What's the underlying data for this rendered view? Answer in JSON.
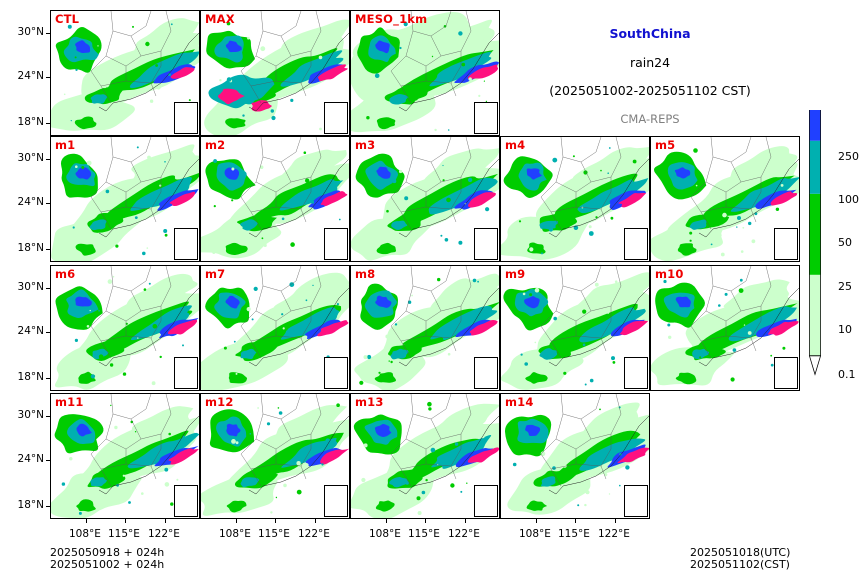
{
  "header": {
    "region": "SouthChina",
    "variable": "rain24",
    "period": "(2025051002-2025051102 CST)",
    "system": "CMA-REPS"
  },
  "panels": [
    {
      "label": "CTL"
    },
    {
      "label": "MAX"
    },
    {
      "label": "MESO_1km"
    },
    {
      "label": "m1"
    },
    {
      "label": "m2"
    },
    {
      "label": "m3"
    },
    {
      "label": "m4"
    },
    {
      "label": "m5"
    },
    {
      "label": "m6"
    },
    {
      "label": "m7"
    },
    {
      "label": "m8"
    },
    {
      "label": "m9"
    },
    {
      "label": "m10"
    },
    {
      "label": "m11"
    },
    {
      "label": "m12"
    },
    {
      "label": "m13"
    },
    {
      "label": "m14"
    }
  ],
  "axes": {
    "lat_ticks": [
      "30°N",
      "24°N",
      "18°N"
    ],
    "lon_ticks": [
      "108°E",
      "115°E",
      "122°E"
    ]
  },
  "colorbar": {
    "levels": [
      "0.1",
      "10",
      "25",
      "50",
      "100",
      "250"
    ],
    "colors": [
      "#ccffcc",
      "#00cc00",
      "#00b0b0",
      "#2040ff",
      "#ff1080",
      "#a0a0a0"
    ]
  },
  "footer": {
    "init_line1": "2025050918  +  024h",
    "init_line2": "2025051002  +  024h",
    "valid_utc": "2025051018(UTC)",
    "valid_cst": "2025051102(CST)"
  }
}
